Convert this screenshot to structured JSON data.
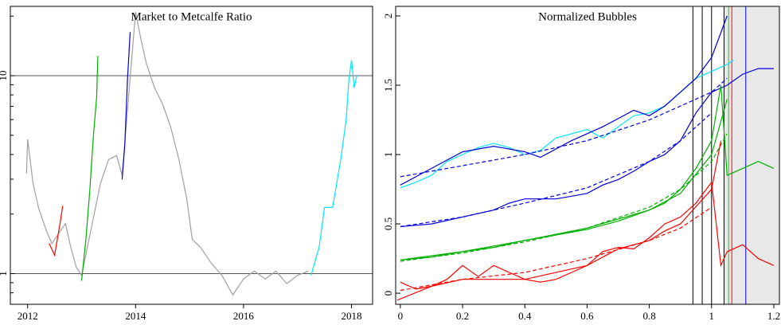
{
  "chart_data": [
    {
      "type": "line",
      "title": "Market to Metcalfe Ratio",
      "log_y": true,
      "xlim": [
        2011.68,
        2018.39
      ],
      "xticks": [
        2012,
        2014,
        2016,
        2018
      ],
      "ylim": [
        0.7,
        22.4
      ],
      "yticks": [
        1,
        10
      ],
      "yminor_ticks": [
        0.8,
        0.9,
        2,
        3,
        4,
        5,
        6,
        7,
        8,
        9,
        20
      ],
      "hlines": [
        1,
        10
      ],
      "series": [
        {
          "color": "#a0a0a0",
          "x": [
            2011.98,
            2012.0,
            2012.1,
            2012.2,
            2012.35,
            2012.45,
            2012.7,
            2012.8,
            2012.9,
            2013.0,
            2013.35,
            2013.5,
            2013.65,
            2013.75,
            2014.0,
            2014.1,
            2014.2,
            2014.35,
            2014.5,
            2014.65,
            2014.8,
            2014.95,
            2015.05,
            2015.2,
            2015.4,
            2015.6,
            2015.8,
            2016.0,
            2016.2,
            2016.4,
            2016.6,
            2016.8,
            2017.0,
            2017.2
          ],
          "values": [
            3.2,
            4.76,
            2.86,
            2.16,
            1.64,
            1.42,
            1.79,
            1.36,
            1.08,
            0.98,
            2.86,
            3.77,
            3.95,
            3.13,
            21,
            15.2,
            11.5,
            8.7,
            7.2,
            5.5,
            3.8,
            2.37,
            1.49,
            1.36,
            1.13,
            0.98,
            0.78,
            0.94,
            1.03,
            0.94,
            1.03,
            0.89,
            0.98,
            1.03
          ]
        },
        {
          "color": "#ff0000",
          "x": [
            2012.4,
            2012.5,
            2012.55,
            2012.6,
            2012.65
          ],
          "values": [
            1.42,
            1.24,
            1.49,
            1.79,
            2.2
          ]
        },
        {
          "color": "#00b000",
          "x": [
            2013.0,
            2013.08,
            2013.15,
            2013.22,
            2013.28,
            2013.3
          ],
          "values": [
            0.92,
            1.49,
            2.6,
            5.0,
            7.9,
            12.6
          ]
        },
        {
          "color": "#0000dd",
          "x": [
            2013.75,
            2013.8,
            2013.85,
            2013.9
          ],
          "values": [
            2.99,
            4.5,
            9.5,
            16.6
          ]
        },
        {
          "color": "#00e5ff",
          "x": [
            2017.25,
            2017.4,
            2017.5,
            2017.65,
            2017.8,
            2017.9,
            2017.95,
            2018.0,
            2018.05,
            2018.1
          ],
          "values": [
            0.98,
            1.36,
            2.16,
            2.16,
            3.77,
            6.0,
            9.5,
            12.0,
            8.7,
            10
          ]
        }
      ]
    },
    {
      "type": "line",
      "title": "Normalized Bubbles",
      "log_y": false,
      "xlim": [
        -0.015,
        1.218
      ],
      "xticks": [
        0,
        0.2,
        0.4,
        0.6,
        0.8,
        1,
        1.2
      ],
      "ylim": [
        -0.08,
        2.069
      ],
      "yticks": [
        0,
        0.5,
        1,
        1.5,
        2
      ],
      "shade_x": [
        1.04,
        1.218
      ],
      "vlines": [
        {
          "value": 0.94,
          "color": "#000000"
        },
        {
          "value": 0.97,
          "color": "#000000"
        },
        {
          "value": 1.0,
          "color": "#000000"
        },
        {
          "value": 1.04,
          "color": "#000000"
        },
        {
          "value": 1.055,
          "color": "#00e000"
        },
        {
          "value": 1.065,
          "color": "#ff0000"
        },
        {
          "value": 1.11,
          "color": "#0000dd"
        }
      ],
      "series": [
        {
          "color": "#00e5ff",
          "x": [
            0,
            0.05,
            0.1,
            0.15,
            0.2,
            0.25,
            0.3,
            0.35,
            0.4,
            0.45,
            0.5,
            0.55,
            0.6,
            0.65,
            0.7,
            0.75,
            0.8,
            0.85,
            0.9,
            0.95,
            1.0,
            1.05,
            1.07
          ],
          "values": [
            0.76,
            0.8,
            0.85,
            0.95,
            1.0,
            1.05,
            1.08,
            1.05,
            1.0,
            1.03,
            1.12,
            1.15,
            1.18,
            1.12,
            1.2,
            1.28,
            1.3,
            1.35,
            1.45,
            1.55,
            1.6,
            1.65,
            1.68
          ]
        },
        {
          "color": "#0000dd",
          "dashed": true,
          "x": [
            0,
            0.2,
            0.4,
            0.6,
            0.8,
            1.0,
            1.05
          ],
          "values": [
            0.84,
            0.92,
            1.0,
            1.1,
            1.25,
            1.45,
            1.55
          ]
        },
        {
          "color": "#0000dd",
          "x": [
            0,
            0.1,
            0.2,
            0.3,
            0.4,
            0.45,
            0.55,
            0.65,
            0.75,
            0.8,
            0.85,
            0.9,
            0.95,
            1.0,
            1.05
          ],
          "values": [
            0.78,
            0.9,
            1.02,
            1.06,
            1.02,
            0.98,
            1.1,
            1.2,
            1.32,
            1.28,
            1.35,
            1.45,
            1.55,
            1.7,
            2.0
          ]
        },
        {
          "color": "#0000dd",
          "x": [
            0,
            0.1,
            0.2,
            0.3,
            0.35,
            0.4,
            0.5,
            0.55,
            0.6,
            0.65,
            0.7,
            0.75,
            0.8,
            0.85,
            0.9,
            0.95,
            1.0,
            1.05,
            1.1,
            1.15,
            1.2
          ],
          "values": [
            0.48,
            0.5,
            0.55,
            0.6,
            0.65,
            0.68,
            0.68,
            0.7,
            0.72,
            0.78,
            0.82,
            0.88,
            0.95,
            1.0,
            1.1,
            1.3,
            1.45,
            1.5,
            1.58,
            1.62,
            1.62
          ]
        },
        {
          "color": "#0000dd",
          "dashed": true,
          "x": [
            0,
            0.2,
            0.4,
            0.6,
            0.8,
            0.9,
            1.0
          ],
          "values": [
            0.48,
            0.55,
            0.65,
            0.76,
            0.95,
            1.1,
            1.3
          ]
        },
        {
          "color": "#00b000",
          "x": [
            0,
            0.1,
            0.2,
            0.3,
            0.4,
            0.5,
            0.6,
            0.7,
            0.8,
            0.85,
            0.9,
            0.95,
            1.0,
            1.03,
            1.05,
            1.1,
            1.15,
            1.2
          ],
          "values": [
            0.24,
            0.26,
            0.3,
            0.33,
            0.38,
            0.42,
            0.46,
            0.52,
            0.6,
            0.65,
            0.75,
            0.9,
            1.1,
            1.5,
            0.85,
            0.9,
            0.95,
            0.9
          ]
        },
        {
          "color": "#00b000",
          "dashed": true,
          "x": [
            0,
            0.2,
            0.4,
            0.6,
            0.8,
            0.9,
            1.0,
            1.05
          ],
          "values": [
            0.23,
            0.29,
            0.37,
            0.47,
            0.62,
            0.75,
            0.95,
            1.15
          ]
        },
        {
          "color": "#00b000",
          "x": [
            0,
            0.2,
            0.4,
            0.6,
            0.8,
            0.9,
            1.0,
            1.05
          ],
          "values": [
            0.24,
            0.3,
            0.38,
            0.47,
            0.6,
            0.72,
            1.0,
            1.4
          ]
        },
        {
          "color": "#ff0000",
          "x": [
            0,
            0.05,
            0.1,
            0.15,
            0.2,
            0.25,
            0.3,
            0.35,
            0.4,
            0.45,
            0.5,
            0.55,
            0.6,
            0.65,
            0.7,
            0.75,
            0.8,
            0.85,
            0.9,
            0.95,
            1.0,
            1.03,
            1.05,
            1.1,
            1.15,
            1.2
          ],
          "values": [
            0.08,
            0.03,
            0.05,
            0.1,
            0.2,
            0.12,
            0.2,
            0.15,
            0.1,
            0.08,
            0.1,
            0.15,
            0.2,
            0.3,
            0.33,
            0.32,
            0.4,
            0.5,
            0.55,
            0.65,
            0.8,
            0.2,
            0.3,
            0.35,
            0.25,
            0.2
          ]
        },
        {
          "color": "#ff0000",
          "dashed": true,
          "x": [
            0,
            0.2,
            0.4,
            0.6,
            0.8,
            0.9,
            1.0
          ],
          "values": [
            0.02,
            0.1,
            0.15,
            0.25,
            0.38,
            0.47,
            0.62
          ]
        },
        {
          "color": "#ff0000",
          "x": [
            -0.01,
            0.1,
            0.2,
            0.4,
            0.6,
            0.7,
            0.8,
            0.85,
            0.9,
            1.0,
            1.03
          ],
          "values": [
            -0.05,
            0.05,
            0.1,
            0.1,
            0.2,
            0.32,
            0.38,
            0.45,
            0.5,
            0.75,
            1.1
          ]
        }
      ]
    }
  ]
}
